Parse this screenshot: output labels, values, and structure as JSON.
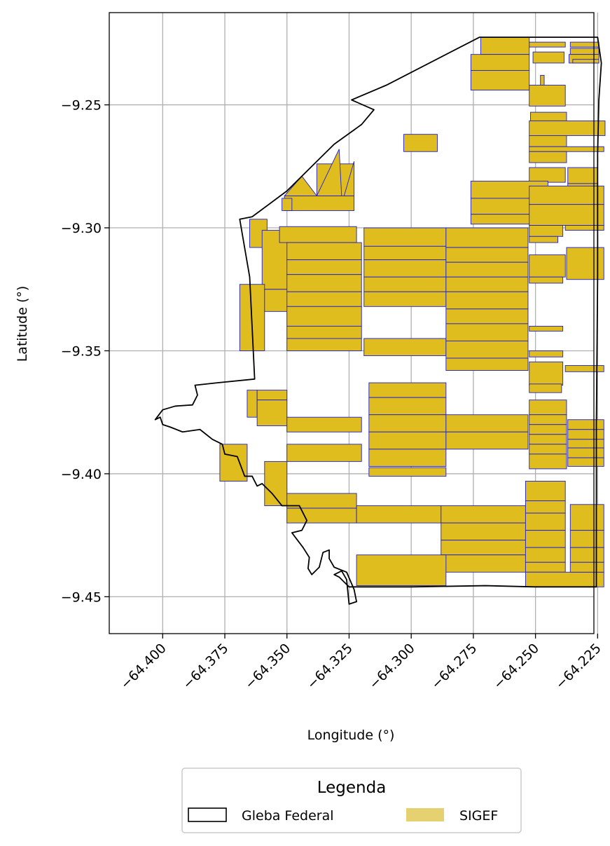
{
  "chart_data": {
    "type": "map",
    "title": "",
    "xlabel": "Longitude (°)",
    "ylabel": "Latitude (°)",
    "xlim": [
      -64.4215,
      -64.2265
    ],
    "ylim": [
      -9.465,
      -9.2125
    ],
    "x_ticks": [
      -64.4,
      -64.375,
      -64.35,
      -64.325,
      -64.3,
      -64.275,
      -64.25,
      -64.225
    ],
    "x_tick_labels": [
      "−64.400",
      "−64.375",
      "−64.350",
      "−64.325",
      "−64.300",
      "−64.275",
      "−64.250",
      "−64.225"
    ],
    "y_ticks": [
      -9.25,
      -9.3,
      -9.35,
      -9.4,
      -9.45
    ],
    "y_tick_labels": [
      "−9.25",
      "−9.30",
      "−9.35",
      "−9.40",
      "−9.45"
    ],
    "grid": true,
    "legend": {
      "title": "Legenda",
      "placement": "bottom-center",
      "entries": [
        {
          "label": "Gleba Federal",
          "style": "outline",
          "color": "#000000"
        },
        {
          "label": "SIGEF",
          "style": "fill",
          "color": "#e6d170"
        }
      ]
    },
    "colors": {
      "parcel_fill": "#dfbd1f",
      "parcel_edge": "#1f1fd0",
      "boundary": "#000000"
    },
    "layers": [
      {
        "name": "Gleba Federal",
        "type": "polygon",
        "coords": [
          [
            -64.2725,
            -9.2225
          ],
          [
            -64.225,
            -9.2225
          ],
          [
            -64.2235,
            -9.233
          ],
          [
            -64.2245,
            -9.248
          ],
          [
            -64.225,
            -9.27
          ],
          [
            -64.225,
            -9.32
          ],
          [
            -64.2255,
            -9.38
          ],
          [
            -64.2255,
            -9.446
          ],
          [
            -64.25,
            -9.446
          ],
          [
            -64.27,
            -9.4455
          ],
          [
            -64.3,
            -9.446
          ],
          [
            -64.325,
            -9.446
          ],
          [
            -64.329,
            -9.442
          ],
          [
            -64.331,
            -9.441
          ],
          [
            -64.328,
            -9.4395
          ],
          [
            -64.326,
            -9.443
          ],
          [
            -64.325,
            -9.453
          ],
          [
            -64.322,
            -9.452
          ],
          [
            -64.323,
            -9.447
          ],
          [
            -64.326,
            -9.44
          ],
          [
            -64.331,
            -9.438
          ],
          [
            -64.333,
            -9.4345
          ],
          [
            -64.333,
            -9.431
          ],
          [
            -64.3355,
            -9.432
          ],
          [
            -64.337,
            -9.438
          ],
          [
            -64.34,
            -9.441
          ],
          [
            -64.3415,
            -9.4385
          ],
          [
            -64.341,
            -9.434
          ],
          [
            -64.3435,
            -9.43
          ],
          [
            -64.3465,
            -9.426
          ],
          [
            -64.348,
            -9.424
          ],
          [
            -64.344,
            -9.423
          ],
          [
            -64.342,
            -9.419
          ],
          [
            -64.345,
            -9.413
          ],
          [
            -64.348,
            -9.413
          ],
          [
            -64.352,
            -9.413
          ],
          [
            -64.356,
            -9.408
          ],
          [
            -64.36,
            -9.404
          ],
          [
            -64.362,
            -9.405
          ],
          [
            -64.364,
            -9.401
          ],
          [
            -64.367,
            -9.401
          ],
          [
            -64.37,
            -9.393
          ],
          [
            -64.375,
            -9.392
          ],
          [
            -64.376,
            -9.388
          ],
          [
            -64.38,
            -9.386
          ],
          [
            -64.385,
            -9.382
          ],
          [
            -64.392,
            -9.383
          ],
          [
            -64.397,
            -9.381
          ],
          [
            -64.4,
            -9.38
          ],
          [
            -64.401,
            -9.377
          ],
          [
            -64.403,
            -9.378
          ],
          [
            -64.4,
            -9.374
          ],
          [
            -64.395,
            -9.3725
          ],
          [
            -64.388,
            -9.372
          ],
          [
            -64.386,
            -9.368
          ],
          [
            -64.387,
            -9.364
          ],
          [
            -64.378,
            -9.363
          ],
          [
            -64.363,
            -9.3615
          ],
          [
            -64.365,
            -9.32
          ],
          [
            -64.369,
            -9.2965
          ],
          [
            -64.364,
            -9.2955
          ],
          [
            -64.35,
            -9.285
          ],
          [
            -64.335,
            -9.27
          ],
          [
            -64.331,
            -9.266
          ],
          [
            -64.32,
            -9.258
          ],
          [
            -64.315,
            -9.252
          ],
          [
            -64.324,
            -9.248
          ],
          [
            -64.31,
            -9.242
          ],
          [
            -64.2725,
            -9.2225
          ]
        ]
      },
      {
        "name": "SIGEF",
        "type": "polygon_collection",
        "rects": [
          [
            -64.272,
            -64.2525,
            -9.2225,
            -9.2295
          ],
          [
            -64.276,
            -64.2525,
            -9.2295,
            -9.236
          ],
          [
            -64.276,
            -64.2525,
            -9.236,
            -9.244
          ],
          [
            -64.2525,
            -64.238,
            -9.2245,
            -9.2265
          ],
          [
            -64.236,
            -64.2245,
            -9.2245,
            -9.2265
          ],
          [
            -64.236,
            -64.2245,
            -9.227,
            -9.2295
          ],
          [
            -64.251,
            -64.2385,
            -9.2285,
            -9.233
          ],
          [
            -64.2365,
            -64.2245,
            -9.2295,
            -9.233
          ],
          [
            -64.235,
            -64.2245,
            -9.2315,
            -9.233
          ],
          [
            -64.248,
            -64.2465,
            -9.238,
            -9.242
          ],
          [
            -64.2525,
            -64.238,
            -9.242,
            -9.2505
          ],
          [
            -64.252,
            -64.2375,
            -9.253,
            -9.2565
          ],
          [
            -64.2525,
            -64.222,
            -9.2565,
            -9.2625
          ],
          [
            -64.2525,
            -64.2375,
            -9.2625,
            -9.267
          ],
          [
            -64.2525,
            -64.2225,
            -9.267,
            -9.269
          ],
          [
            -64.2525,
            -64.2375,
            -9.269,
            -9.2735
          ],
          [
            -64.2525,
            -64.238,
            -9.2755,
            -9.2815
          ],
          [
            -64.237,
            -64.225,
            -9.2755,
            -9.282
          ],
          [
            -64.237,
            -64.225,
            -9.282,
            -9.284
          ],
          [
            -64.276,
            -64.245,
            -9.281,
            -9.288
          ],
          [
            -64.276,
            -64.245,
            -9.288,
            -9.2945
          ],
          [
            -64.276,
            -64.245,
            -9.2945,
            -9.2985
          ],
          [
            -64.2525,
            -64.2225,
            -9.283,
            -9.2905
          ],
          [
            -64.2525,
            -64.2225,
            -9.2905,
            -9.299
          ],
          [
            -64.2525,
            -64.239,
            -9.299,
            -9.3035
          ],
          [
            -64.238,
            -64.2225,
            -9.299,
            -9.301
          ],
          [
            -64.2525,
            -64.241,
            -9.3035,
            -9.306
          ],
          [
            -64.303,
            -64.2895,
            -9.262,
            -9.269
          ],
          [
            -64.351,
            -64.323,
            -9.287,
            -9.293
          ],
          [
            -64.352,
            -64.348,
            -9.288,
            -9.293
          ],
          [
            -64.338,
            -64.323,
            -9.274,
            -9.287
          ],
          [
            -64.365,
            -64.358,
            -9.2965,
            -9.308
          ],
          [
            -64.36,
            -64.348,
            -9.301,
            -9.325
          ],
          [
            -64.369,
            -64.359,
            -9.323,
            -9.35
          ],
          [
            -64.359,
            -64.348,
            -9.325,
            -9.334
          ],
          [
            -64.353,
            -64.322,
            -9.2995,
            -9.306
          ],
          [
            -64.35,
            -64.32,
            -9.306,
            -9.313
          ],
          [
            -64.35,
            -64.32,
            -9.313,
            -9.319
          ],
          [
            -64.35,
            -64.32,
            -9.319,
            -9.326
          ],
          [
            -64.35,
            -64.32,
            -9.326,
            -9.332
          ],
          [
            -64.35,
            -64.32,
            -9.332,
            -9.34
          ],
          [
            -64.35,
            -64.32,
            -9.34,
            -9.345
          ],
          [
            -64.35,
            -64.32,
            -9.345,
            -9.35
          ],
          [
            -64.319,
            -64.286,
            -9.3,
            -9.3075
          ],
          [
            -64.319,
            -64.286,
            -9.3075,
            -9.313
          ],
          [
            -64.319,
            -64.286,
            -9.313,
            -9.32
          ],
          [
            -64.319,
            -64.286,
            -9.32,
            -9.326
          ],
          [
            -64.319,
            -64.286,
            -9.326,
            -9.332
          ],
          [
            -64.319,
            -64.286,
            -9.345,
            -9.352
          ],
          [
            -64.286,
            -64.253,
            -9.3,
            -9.308
          ],
          [
            -64.286,
            -64.253,
            -9.308,
            -9.314
          ],
          [
            -64.286,
            -64.253,
            -9.314,
            -9.32
          ],
          [
            -64.286,
            -64.253,
            -9.32,
            -9.326
          ],
          [
            -64.286,
            -64.253,
            -9.326,
            -9.333
          ],
          [
            -64.286,
            -64.253,
            -9.333,
            -9.339
          ],
          [
            -64.286,
            -64.253,
            -9.339,
            -9.346
          ],
          [
            -64.286,
            -64.253,
            -9.346,
            -9.353
          ],
          [
            -64.286,
            -64.253,
            -9.353,
            -9.358
          ],
          [
            -64.2525,
            -64.238,
            -9.311,
            -9.32
          ],
          [
            -64.2375,
            -64.2225,
            -9.308,
            -9.321
          ],
          [
            -64.2525,
            -64.239,
            -9.32,
            -9.3225
          ],
          [
            -64.2525,
            -64.239,
            -9.34,
            -9.342
          ],
          [
            -64.2525,
            -64.239,
            -9.35,
            -9.3525
          ],
          [
            -64.2525,
            -64.239,
            -9.3545,
            -9.364
          ],
          [
            -64.238,
            -64.2225,
            -9.356,
            -9.3585
          ],
          [
            -64.2525,
            -64.2395,
            -9.3635,
            -9.367
          ],
          [
            -64.366,
            -64.362,
            -9.366,
            -9.377
          ],
          [
            -64.362,
            -64.35,
            -9.366,
            -9.37
          ],
          [
            -64.362,
            -64.35,
            -9.37,
            -9.3805
          ],
          [
            -64.35,
            -64.32,
            -9.377,
            -9.383
          ],
          [
            -64.317,
            -64.286,
            -9.363,
            -9.369
          ],
          [
            -64.317,
            -64.286,
            -9.369,
            -9.376
          ],
          [
            -64.317,
            -64.286,
            -9.376,
            -9.383
          ],
          [
            -64.317,
            -64.286,
            -9.383,
            -9.39
          ],
          [
            -64.317,
            -64.286,
            -9.39,
            -9.397
          ],
          [
            -64.317,
            -64.286,
            -9.3975,
            -9.401
          ],
          [
            -64.35,
            -64.32,
            -9.388,
            -9.395
          ],
          [
            -64.286,
            -64.253,
            -9.376,
            -9.383
          ],
          [
            -64.286,
            -64.253,
            -9.383,
            -9.39
          ],
          [
            -64.2525,
            -64.2375,
            -9.37,
            -9.376
          ],
          [
            -64.2525,
            -64.2375,
            -9.376,
            -9.38
          ],
          [
            -64.2525,
            -64.2375,
            -9.38,
            -9.384
          ],
          [
            -64.2525,
            -64.2375,
            -9.384,
            -9.388
          ],
          [
            -64.2525,
            -64.2375,
            -9.388,
            -9.392
          ],
          [
            -64.2525,
            -64.2375,
            -9.392,
            -9.398
          ],
          [
            -64.237,
            -64.2225,
            -9.378,
            -9.382
          ],
          [
            -64.237,
            -64.2225,
            -9.382,
            -9.386
          ],
          [
            -64.237,
            -64.2225,
            -9.386,
            -9.3895
          ],
          [
            -64.237,
            -64.2225,
            -9.3895,
            -9.3935
          ],
          [
            -64.237,
            -64.2225,
            -9.3935,
            -9.397
          ],
          [
            -64.377,
            -64.366,
            -9.388,
            -9.403
          ],
          [
            -64.359,
            -64.35,
            -9.395,
            -9.413
          ],
          [
            -64.35,
            -64.322,
            -9.408,
            -9.414
          ],
          [
            -64.35,
            -64.322,
            -9.414,
            -9.42
          ],
          [
            -64.322,
            -64.288,
            -9.413,
            -9.42
          ],
          [
            -64.288,
            -64.254,
            -9.413,
            -9.42
          ],
          [
            -64.288,
            -64.254,
            -9.42,
            -9.427
          ],
          [
            -64.288,
            -64.254,
            -9.427,
            -9.433
          ],
          [
            -64.288,
            -64.254,
            -9.433,
            -9.44
          ],
          [
            -64.322,
            -64.286,
            -9.433,
            -9.4455
          ],
          [
            -64.254,
            -64.238,
            -9.403,
            -9.411
          ],
          [
            -64.254,
            -64.238,
            -9.411,
            -9.416
          ],
          [
            -64.254,
            -64.238,
            -9.416,
            -9.423
          ],
          [
            -64.254,
            -64.238,
            -9.423,
            -9.43
          ],
          [
            -64.254,
            -64.238,
            -9.43,
            -9.436
          ],
          [
            -64.254,
            -64.238,
            -9.436,
            -9.44
          ],
          [
            -64.254,
            -64.2225,
            -9.44,
            -9.446
          ],
          [
            -64.236,
            -64.2225,
            -9.4125,
            -9.423
          ],
          [
            -64.236,
            -64.2225,
            -9.423,
            -9.43
          ],
          [
            -64.236,
            -64.2225,
            -9.43,
            -9.436
          ],
          [
            -64.236,
            -64.2225,
            -9.436,
            -9.44
          ]
        ],
        "triangles": [
          [
            [
              -64.351,
              -9.287
            ],
            [
              -64.344,
              -9.279
            ],
            [
              -64.338,
              -9.287
            ]
          ],
          [
            [
              -64.338,
              -9.287
            ],
            [
              -64.329,
              -9.268
            ],
            [
              -64.328,
              -9.287
            ]
          ],
          [
            [
              -64.327,
              -9.287
            ],
            [
              -64.323,
              -9.273
            ],
            [
              -64.323,
              -9.287
            ]
          ]
        ]
      }
    ]
  }
}
